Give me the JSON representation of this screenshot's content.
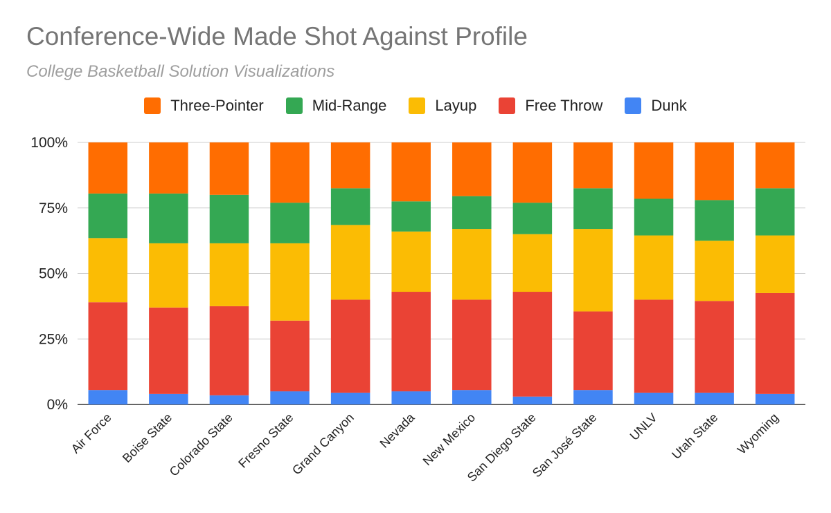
{
  "title": "Conference-Wide Made Shot Against Profile",
  "subtitle": "College Basketball Solution Visualizations",
  "chart_data": {
    "type": "bar",
    "stacked": "percent",
    "title": "Conference-Wide Made Shot Against Profile",
    "subtitle": "College Basketball Solution Visualizations",
    "xlabel": "",
    "ylabel": "",
    "ylim": [
      0,
      100
    ],
    "y_ticks": [
      "0%",
      "25%",
      "50%",
      "75%",
      "100%"
    ],
    "grid": true,
    "legend_position": "top",
    "categories": [
      "Air Force",
      "Boise State",
      "Colorado State",
      "Fresno State",
      "Grand Canyon",
      "Nevada",
      "New Mexico",
      "San Diego State",
      "San José State",
      "UNLV",
      "Utah State",
      "Wyoming"
    ],
    "series": [
      {
        "name": "Dunk",
        "color": "#4285F4",
        "values": [
          5.5,
          4,
          3.5,
          5,
          4.5,
          5,
          5.5,
          3,
          5.5,
          4.5,
          4.5,
          4
        ]
      },
      {
        "name": "Free Throw",
        "color": "#EA4335",
        "values": [
          33.5,
          33,
          34,
          27,
          35.5,
          38,
          34.5,
          40,
          30,
          35.5,
          35,
          38.5
        ]
      },
      {
        "name": "Layup",
        "color": "#FBBC04",
        "values": [
          24.5,
          24.5,
          24,
          29.5,
          28.5,
          23,
          27,
          22,
          31.5,
          24.5,
          23,
          22
        ]
      },
      {
        "name": "Mid-Range",
        "color": "#34A853",
        "values": [
          17,
          19,
          18.5,
          15.5,
          14,
          11.5,
          12.5,
          12,
          15.5,
          14,
          15.5,
          18
        ]
      },
      {
        "name": "Three-Pointer",
        "color": "#FF6D01",
        "values": [
          19.5,
          19.5,
          20,
          23,
          17.5,
          22.5,
          20.5,
          23,
          17.5,
          21.5,
          22,
          17.5
        ]
      }
    ],
    "legend_order": [
      "Three-Pointer",
      "Mid-Range",
      "Layup",
      "Free Throw",
      "Dunk"
    ]
  }
}
